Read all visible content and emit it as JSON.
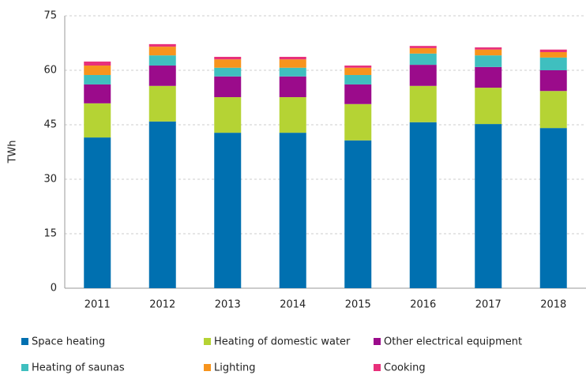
{
  "chart_data": {
    "type": "stacked_bar",
    "y_label": "TWh",
    "categories": [
      "2011",
      "2012",
      "2013",
      "2014",
      "2015",
      "2016",
      "2017",
      "2018"
    ],
    "series": [
      {
        "name": "Space heating",
        "color": "#0070b0",
        "values": [
          41.5,
          45.9,
          42.8,
          42.8,
          40.7,
          45.7,
          45.2,
          44.1
        ]
      },
      {
        "name": "Heating of domestic water",
        "color": "#b5d334",
        "values": [
          9.4,
          9.8,
          9.8,
          9.8,
          10.0,
          10.0,
          10.0,
          10.2
        ]
      },
      {
        "name": "Other electrical equipment",
        "color": "#9b0b8b",
        "values": [
          5.2,
          5.6,
          5.7,
          5.7,
          5.4,
          5.8,
          5.7,
          5.7
        ]
      },
      {
        "name": "Heating of saunas",
        "color": "#3fbfbf",
        "values": [
          2.6,
          2.8,
          2.4,
          2.4,
          2.6,
          3.1,
          3.2,
          3.5
        ]
      },
      {
        "name": "Lighting",
        "color": "#f7941d",
        "values": [
          2.6,
          2.4,
          2.3,
          2.3,
          2.0,
          1.5,
          1.6,
          1.5
        ]
      },
      {
        "name": "Cooking",
        "color": "#e8307a",
        "values": [
          1.1,
          0.7,
          0.7,
          0.7,
          0.6,
          0.6,
          0.6,
          0.7
        ]
      }
    ],
    "ylim": [
      0,
      75
    ],
    "yticks": [
      0,
      15,
      30,
      45,
      60,
      75
    ],
    "grid": true,
    "legend": "bottom"
  }
}
